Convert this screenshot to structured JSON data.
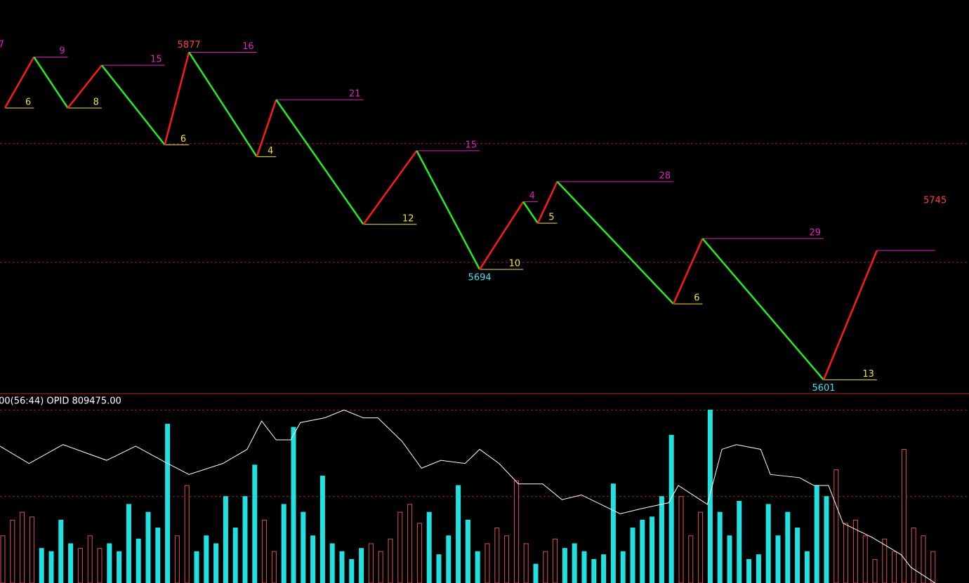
{
  "chart_data": {
    "type": "zigzag",
    "xlim": [
      0,
      200
    ],
    "ylim": [
      5590,
      5921
    ],
    "grid_levels": [
      5800,
      5700
    ],
    "up_color": "#ff1a1a",
    "down_color": "#22ee22",
    "high_color": "#e020c0",
    "low_color": "#f0e040",
    "edge_count": 7,
    "pivots": {
      "x": [
        1,
        7,
        14,
        21,
        34,
        39,
        53,
        57,
        75,
        86,
        99,
        108,
        111,
        115,
        139,
        145,
        170,
        181
      ],
      "values": [
        5830,
        5873,
        5830,
        5866,
        5799,
        5877,
        5789,
        5837,
        5732,
        5794,
        5694,
        5751,
        5733,
        5768,
        5665,
        5720,
        5601,
        5710
      ],
      "counts": [
        6,
        9,
        8,
        15,
        6,
        16,
        4,
        21,
        12,
        15,
        10,
        4,
        5,
        28,
        6,
        29,
        13,
        null
      ]
    },
    "price_labels": [
      5,
      10,
      16
    ],
    "last": {
      "x": 193,
      "value": 5745
    },
    "indicator_text": ".00(56:44)  OPID 809475.00",
    "volume": {
      "up_color": "#e05050",
      "down_color": "#20e0e0",
      "ylim": [
        0,
        120
      ],
      "grid_levels": [
        110,
        55
      ],
      "x": [
        0,
        2,
        4,
        6,
        8,
        10,
        12,
        14,
        16,
        18,
        20,
        22,
        24,
        26,
        28,
        30,
        32,
        34,
        36,
        38,
        40,
        42,
        44,
        46,
        48,
        50,
        52,
        54,
        56,
        58,
        60,
        62,
        64,
        66,
        68,
        70,
        72,
        74,
        76,
        78,
        80,
        82,
        84,
        86,
        88,
        90,
        92,
        94,
        96,
        98,
        100,
        102,
        104,
        106,
        108,
        110,
        112,
        114,
        116,
        118,
        120,
        122,
        124,
        126,
        128,
        130,
        132,
        134,
        136,
        138,
        140,
        142,
        144,
        146,
        148,
        150,
        152,
        154,
        156,
        158,
        160,
        162,
        164,
        166,
        168,
        170,
        172,
        174,
        176,
        178,
        180,
        182,
        184,
        186,
        188,
        190,
        192
      ],
      "values": [
        30,
        40,
        45,
        42,
        22,
        20,
        40,
        25,
        22,
        30,
        22,
        25,
        20,
        50,
        28,
        45,
        35,
        101,
        30,
        62,
        20,
        30,
        25,
        55,
        35,
        55,
        75,
        40,
        20,
        50,
        99,
        45,
        30,
        68,
        25,
        20,
        15,
        22,
        25,
        20,
        28,
        45,
        50,
        38,
        45,
        18,
        30,
        62,
        40,
        20,
        25,
        35,
        30,
        65,
        25,
        12,
        20,
        28,
        22,
        25,
        20,
        15,
        18,
        63,
        20,
        35,
        40,
        42,
        55,
        94,
        55,
        30,
        45,
        110,
        45,
        30,
        52,
        15,
        18,
        50,
        30,
        45,
        35,
        20,
        62,
        55,
        72,
        38,
        40,
        30,
        15,
        28,
        20,
        85,
        35,
        30,
        20
      ]
    },
    "indicator": {
      "color": "#ffffff",
      "x": [
        0,
        6,
        13,
        22,
        28,
        34,
        39,
        46,
        51,
        54,
        57,
        60,
        62,
        67,
        71,
        75,
        78,
        83,
        87,
        91,
        96,
        99,
        103,
        107,
        112,
        116,
        120,
        128,
        132,
        138,
        140,
        146,
        149,
        152,
        157,
        159,
        165,
        168,
        171,
        174,
        180,
        186,
        188,
        193
      ],
      "values": [
        87,
        76,
        88,
        78,
        87,
        77,
        69,
        76,
        85,
        103,
        91,
        91,
        102,
        105,
        110,
        105,
        105,
        90,
        73,
        78,
        76,
        85,
        76,
        63,
        63,
        53,
        56,
        44,
        47,
        51,
        62,
        50,
        85,
        88,
        85,
        69,
        67,
        62,
        62,
        38,
        29,
        18,
        10,
        0
      ]
    }
  }
}
